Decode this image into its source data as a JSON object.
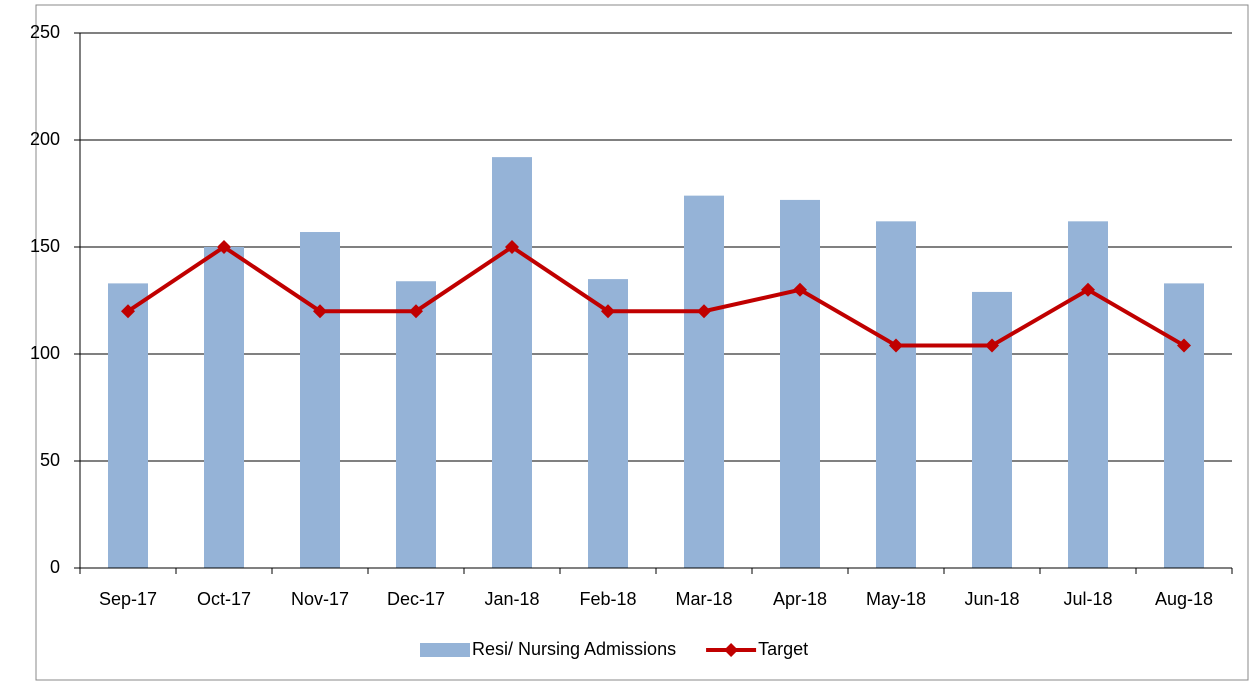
{
  "chart_data": {
    "type": "combo",
    "categories": [
      "Sep-17",
      "Oct-17",
      "Nov-17",
      "Dec-17",
      "Jan-18",
      "Feb-18",
      "Mar-18",
      "Apr-18",
      "May-18",
      "Jun-18",
      "Jul-18",
      "Aug-18"
    ],
    "series": [
      {
        "name": "Resi/ Nursing Admissions",
        "type": "bar",
        "color": "#95b3d7",
        "values": [
          133,
          150,
          157,
          134,
          192,
          135,
          174,
          172,
          162,
          129,
          162,
          133
        ]
      },
      {
        "name": "Target",
        "type": "line",
        "color": "#c00000",
        "values": [
          120,
          150,
          120,
          120,
          150,
          120,
          120,
          130,
          104,
          104,
          130,
          104
        ]
      }
    ],
    "ylim": [
      0,
      250
    ],
    "yticks": [
      0,
      50,
      100,
      150,
      200,
      250
    ],
    "grid": true,
    "legend": "bottom"
  }
}
